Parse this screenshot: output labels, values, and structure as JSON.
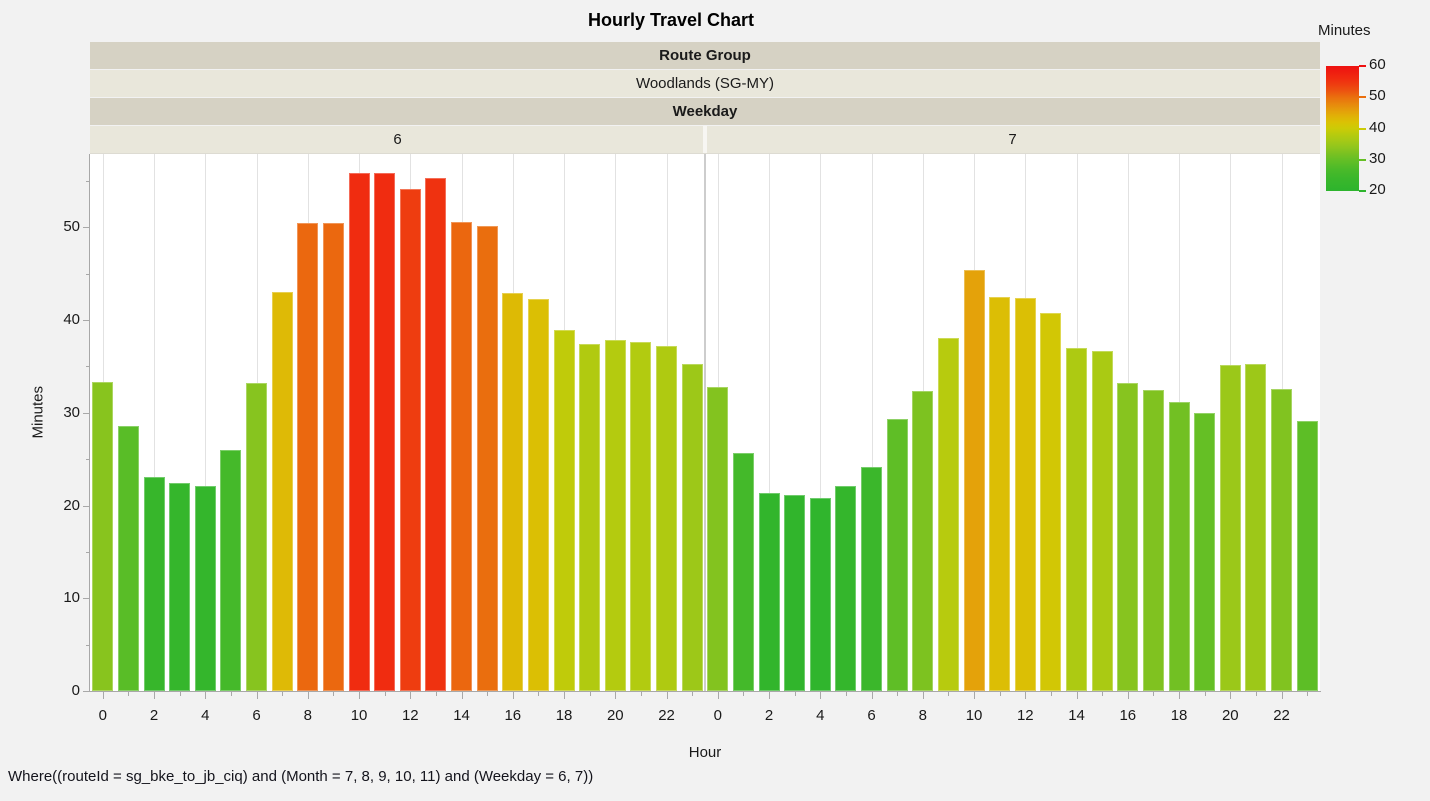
{
  "title": "Hourly Travel Chart",
  "header_bands": {
    "route_group_label": "Route Group",
    "route_group_value": "Woodlands (SG-MY)",
    "weekday_label": "Weekday",
    "panel_labels": [
      "6",
      "7"
    ]
  },
  "axes": {
    "y_label": "Minutes",
    "x_label": "Hour"
  },
  "footer": {
    "where_text": "Where((routeId = sg_bke_to_jb_ciq) and (Month = 7, 8, 9, 10, 11) and (Weekday = 6, 7))"
  },
  "legend": {
    "title": "Minutes",
    "min": 20,
    "max": 60,
    "ticks": [
      60,
      50,
      40,
      30,
      20
    ]
  },
  "colors": {
    "background": "#f2f2f2",
    "band_dark": "#d6d2c4",
    "band_light": "#e9e7db",
    "plot_bg": "#ffffff",
    "gridline": "#e2e2e2",
    "axis": "#a8a8a8",
    "text": "#1a1a1a",
    "gradient_stops": [
      [
        20,
        "#2db42d"
      ],
      [
        24,
        "#3ab72b"
      ],
      [
        27,
        "#4bba29"
      ],
      [
        30,
        "#65bf25"
      ],
      [
        32,
        "#7ac121"
      ],
      [
        34,
        "#90c61d"
      ],
      [
        36,
        "#a4c916"
      ],
      [
        38,
        "#b6cb0e"
      ],
      [
        40,
        "#cccb06"
      ],
      [
        42,
        "#dac204"
      ],
      [
        44,
        "#e1b107"
      ],
      [
        46,
        "#e59c0b"
      ],
      [
        48,
        "#e8860d"
      ],
      [
        50,
        "#ea6f0e"
      ],
      [
        52,
        "#ec5410"
      ],
      [
        54,
        "#ee3e10"
      ],
      [
        56,
        "#f02b10"
      ],
      [
        60,
        "#ee1111"
      ]
    ]
  },
  "chart_data": {
    "type": "bar",
    "title": "Hourly Travel Chart",
    "xlabel": "Hour",
    "ylabel": "Minutes",
    "facet_by": "Weekday",
    "color_scale": {
      "label": "Minutes",
      "domain": [
        20,
        60
      ]
    },
    "ylim": [
      0,
      57.9
    ],
    "y_ticks": [
      0,
      10,
      20,
      30,
      40,
      50
    ],
    "y_minor_ticks": [
      5,
      15,
      25,
      35,
      45,
      55
    ],
    "x_tick_labels": [
      0,
      2,
      4,
      6,
      8,
      10,
      12,
      14,
      16,
      18,
      20,
      22
    ],
    "facets": [
      {
        "weekday": "6",
        "hours": [
          0,
          1,
          2,
          3,
          4,
          5,
          6,
          7,
          8,
          9,
          10,
          11,
          12,
          13,
          14,
          15,
          16,
          17,
          18,
          19,
          20,
          21,
          22,
          23
        ],
        "values": [
          33.3,
          28.6,
          23.1,
          22.4,
          22.1,
          26.0,
          33.2,
          43.0,
          50.5,
          50.5,
          55.9,
          55.9,
          54.1,
          55.3,
          50.6,
          50.1,
          42.9,
          42.3,
          38.9,
          37.4,
          37.8,
          37.6,
          37.2,
          35.3
        ]
      },
      {
        "weekday": "7",
        "hours": [
          0,
          1,
          2,
          3,
          4,
          5,
          6,
          7,
          8,
          9,
          10,
          11,
          12,
          13,
          14,
          15,
          16,
          17,
          18,
          19,
          20,
          21,
          22,
          23
        ],
        "values": [
          32.8,
          25.7,
          21.4,
          21.1,
          20.8,
          22.1,
          24.1,
          29.3,
          32.3,
          38.1,
          45.4,
          42.5,
          42.4,
          40.8,
          37.0,
          36.7,
          33.2,
          32.5,
          31.2,
          30.0,
          35.1,
          35.3,
          32.6,
          29.1
        ]
      }
    ]
  }
}
